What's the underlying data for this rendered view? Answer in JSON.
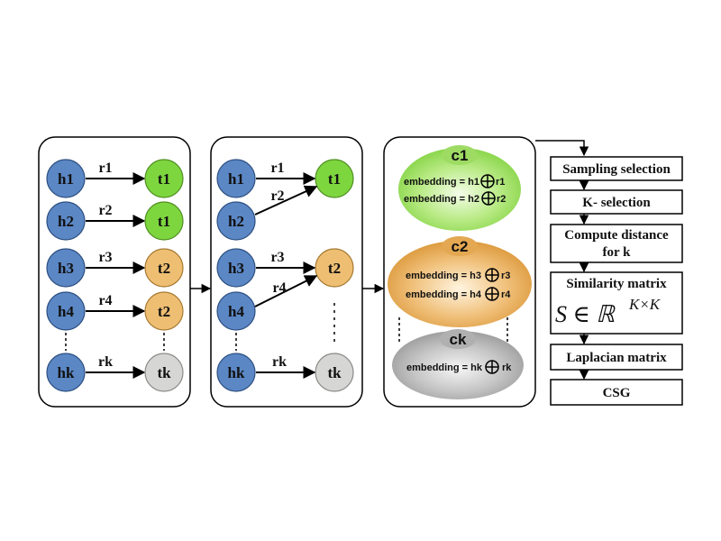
{
  "panel1": {
    "heads": [
      "h1",
      "h2",
      "h3",
      "h4",
      "hk"
    ],
    "relations": [
      "r1",
      "r2",
      "r3",
      "r4",
      "rk"
    ],
    "tails": [
      "t1",
      "t1",
      "t2",
      "t2",
      "tk"
    ]
  },
  "panel2": {
    "heads": [
      "h1",
      "h2",
      "h3",
      "h4",
      "hk"
    ],
    "relations": [
      "r1",
      "r2",
      "r3",
      "r4",
      "rk"
    ],
    "tails": [
      "t1",
      "t2",
      "tk"
    ]
  },
  "clusters": [
    {
      "label": "c1",
      "lines": [
        "embedding = h1",
        "r1",
        "embedding = h2",
        "r2"
      ]
    },
    {
      "label": "c2",
      "lines": [
        "embedding = h3",
        "r3",
        "embedding = h4",
        "r4"
      ]
    },
    {
      "label": "ck",
      "lines": [
        "embedding = hk",
        "rk"
      ]
    }
  ],
  "pipeline": {
    "sampling": "Sampling selection",
    "kselection": "K- selection",
    "compute_line1": "Compute distance",
    "compute_line2": "for k",
    "similarity_title": "Similarity matrix",
    "similarity_formula": "S ∈ ℝ",
    "similarity_exp": "K×K",
    "laplacian": "Laplacian matrix",
    "csg": "CSG"
  },
  "colors": {
    "head_blue": "#5b87c5",
    "tail_green": "#7ed63f",
    "tail_orange": "#eebe73",
    "tail_gray": "#d6d6d4",
    "cluster_green": "#a6e26c",
    "cluster_orange": "#e4a54a",
    "cluster_gray": "#b4b4b4"
  }
}
